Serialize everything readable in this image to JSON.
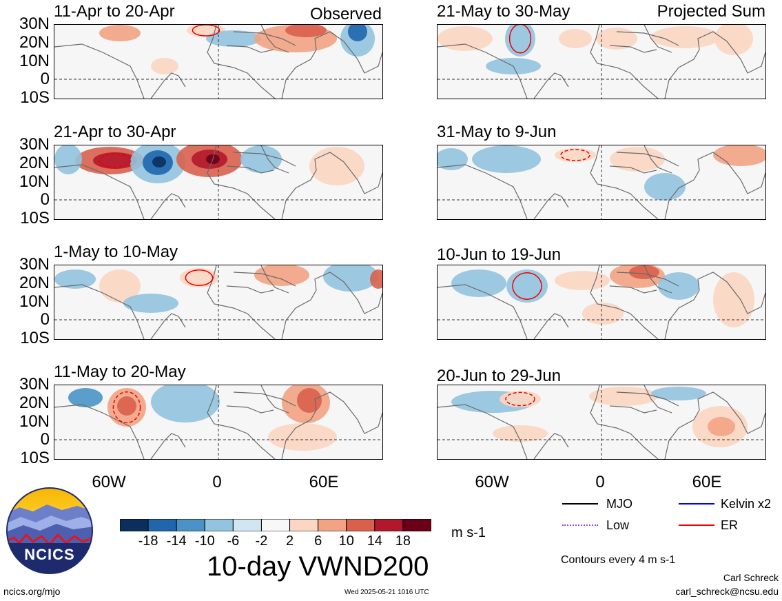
{
  "left_label": "Observed",
  "right_label": "Projected Sum",
  "left_panels": [
    {
      "title": "11-Apr to 20-Apr"
    },
    {
      "title": "21-Apr to 30-Apr"
    },
    {
      "title": "1-May to 10-May"
    },
    {
      "title": "11-May to 20-May"
    }
  ],
  "right_panels": [
    {
      "title": "21-May to 30-May"
    },
    {
      "title": "31-May to 9-Jun"
    },
    {
      "title": "10-Jun to 19-Jun"
    },
    {
      "title": "20-Jun to 29-Jun"
    }
  ],
  "lat_ticks": [
    "30N",
    "20N",
    "10N",
    "0",
    "10S"
  ],
  "lon_ticks": [
    "60W",
    "0",
    "60E"
  ],
  "colorbar": {
    "title": "10-day VWND200",
    "units": "m s-1",
    "labels": [
      "-18",
      "-14",
      "-10",
      "-6",
      "-2",
      "2",
      "6",
      "10",
      "14",
      "18"
    ],
    "colors": [
      "#0a2f5c",
      "#1f66ad",
      "#4a93c6",
      "#92c3df",
      "#d2e6f1",
      "#f8f8f8",
      "#fbd6c2",
      "#f2a383",
      "#d9604d",
      "#b2182b",
      "#6a0018"
    ]
  },
  "legend": {
    "items": [
      {
        "label": "MJO",
        "color": "#000000"
      },
      {
        "label": "Kelvin x2",
        "color": "#0000ff"
      },
      {
        "label": "Low",
        "color": "#a040e0"
      },
      {
        "label": "ER",
        "color": "#ee0000"
      }
    ],
    "contour_note": "Contours every 4 m s-1"
  },
  "logo_text": "NCICS",
  "footer": {
    "url": "ncics.org/mjo",
    "timestamp": "Wed 2025-05-21 1016 UTC",
    "author": "Carl Schreck",
    "email": "carl_schreck@ncsu.edu"
  }
}
